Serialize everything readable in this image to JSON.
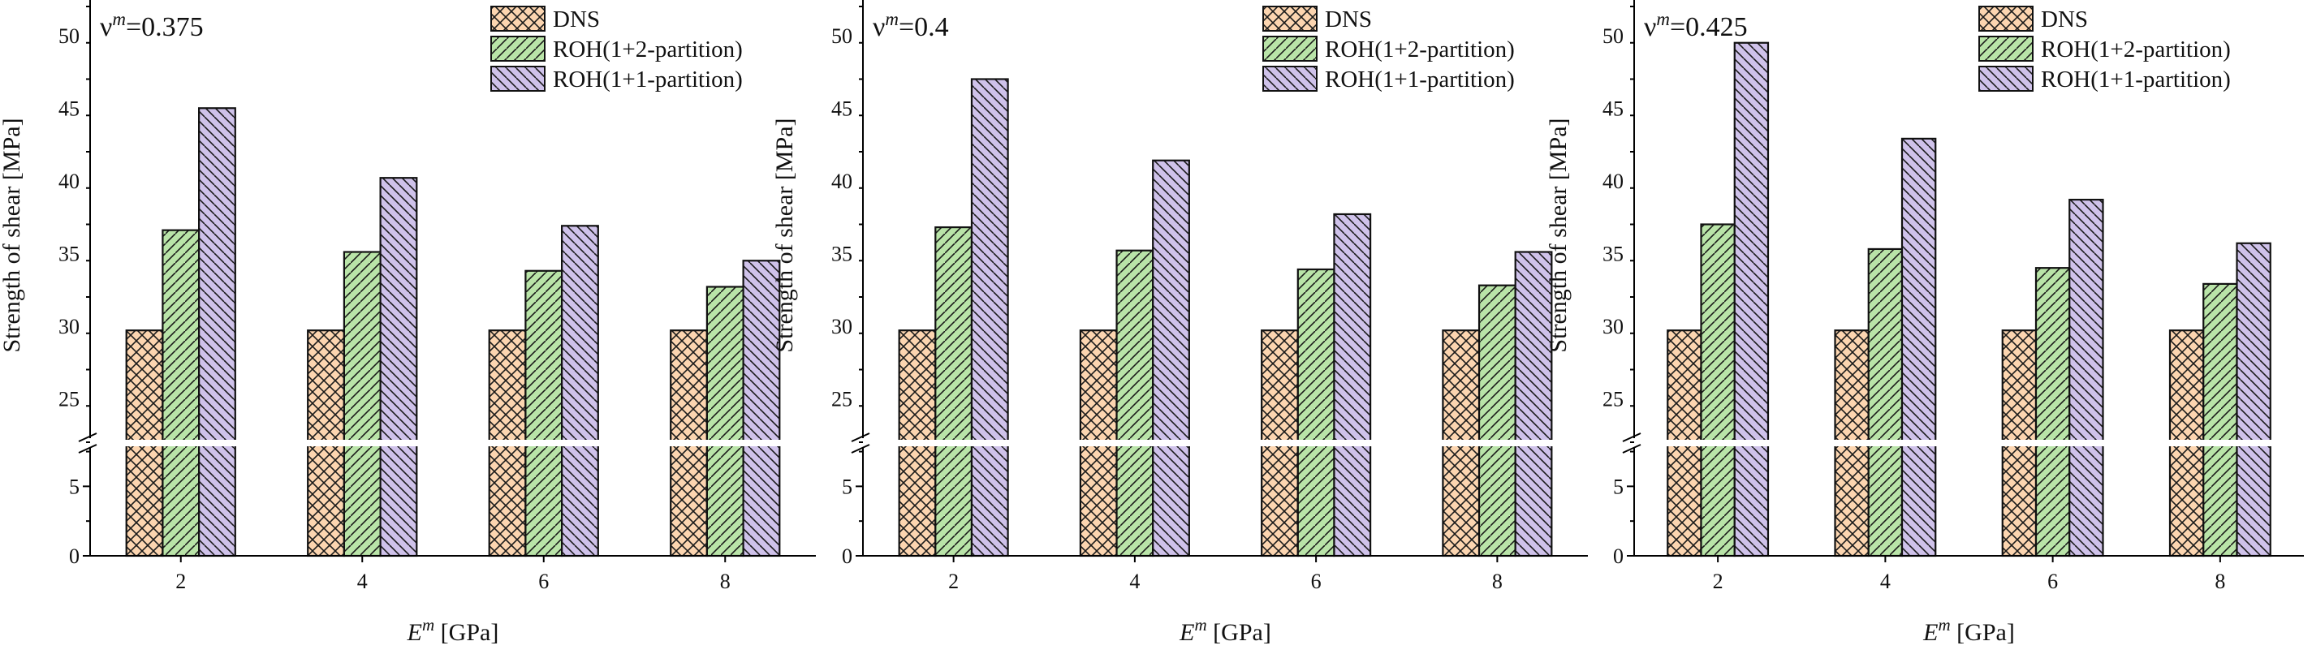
{
  "figure": {
    "legend_entries": [
      "DNS",
      "ROH(1+2-partition)",
      "ROH(1+1-partition)"
    ]
  },
  "colors": {
    "DNS": "#fcd5b0",
    "ROH(1+2-partition)": "#b9e4a8",
    "ROH(1+1-partition)": "#cfc2ea",
    "axis": "#000000",
    "break": "#ffffff"
  },
  "patterns": {
    "DNS": "crosshatch",
    "ROH(1+2-partition)": "forward-diagonal",
    "ROH(1+1-partition)": "back-diagonal"
  },
  "chart_data": [
    {
      "type": "bar",
      "panel_label": {
        "symbol": "ν",
        "superscript": "m",
        "value": "=0.375"
      },
      "xlabel": {
        "symbol": "E",
        "superscript": "m",
        "unit": " [GPa]"
      },
      "ylabel": "Strength of shear [MPa]",
      "categories": [
        "2",
        "4",
        "6",
        "8"
      ],
      "series": [
        {
          "name": "DNS",
          "values": [
            29.7,
            29.7,
            29.7,
            29.7
          ]
        },
        {
          "name": "ROH(1+2-partition)",
          "values": [
            36.6,
            35.1,
            33.8,
            32.7
          ]
        },
        {
          "name": "ROH(1+1-partition)",
          "values": [
            45.0,
            40.2,
            36.9,
            34.5
          ]
        }
      ],
      "axis_break": {
        "lower_range": [
          0,
          8
        ],
        "upper_range": [
          22,
          52
        ]
      },
      "yticks_lower": [
        "0",
        "5"
      ],
      "yticks_upper": [
        "25",
        "30",
        "35",
        "40",
        "45",
        "50"
      ],
      "legend_position": "top-right",
      "grid": false
    },
    {
      "type": "bar",
      "panel_label": {
        "symbol": "ν",
        "superscript": "m",
        "value": "=0.4"
      },
      "xlabel": {
        "symbol": "E",
        "superscript": "m",
        "unit": " [GPa]"
      },
      "ylabel": "Strength of shear [MPa]",
      "categories": [
        "2",
        "4",
        "6",
        "8"
      ],
      "series": [
        {
          "name": "DNS",
          "values": [
            29.7,
            29.7,
            29.7,
            29.7
          ]
        },
        {
          "name": "ROH(1+2-partition)",
          "values": [
            36.8,
            35.2,
            33.9,
            32.8
          ]
        },
        {
          "name": "ROH(1+1-partition)",
          "values": [
            47.0,
            41.4,
            37.7,
            35.1
          ]
        }
      ],
      "axis_break": {
        "lower_range": [
          0,
          8
        ],
        "upper_range": [
          22,
          52
        ]
      },
      "yticks_lower": [
        "0",
        "5"
      ],
      "yticks_upper": [
        "25",
        "30",
        "35",
        "40",
        "45",
        "50"
      ],
      "legend_position": "top-right",
      "grid": false
    },
    {
      "type": "bar",
      "panel_label": {
        "symbol": "ν",
        "superscript": "m",
        "value": "=0.425"
      },
      "xlabel": {
        "symbol": "E",
        "superscript": "m",
        "unit": " [GPa]"
      },
      "ylabel": "Strength of shear [MPa]",
      "categories": [
        "2",
        "4",
        "6",
        "8"
      ],
      "series": [
        {
          "name": "DNS",
          "values": [
            29.7,
            29.7,
            29.7,
            29.7
          ]
        },
        {
          "name": "ROH(1+2-partition)",
          "values": [
            37.0,
            35.3,
            34.0,
            32.9
          ]
        },
        {
          "name": "ROH(1+1-partition)",
          "values": [
            49.5,
            42.9,
            38.7,
            35.7
          ]
        }
      ],
      "axis_break": {
        "lower_range": [
          0,
          8
        ],
        "upper_range": [
          22,
          52
        ]
      },
      "yticks_lower": [
        "0",
        "5"
      ],
      "yticks_upper": [
        "25",
        "30",
        "35",
        "40",
        "45",
        "50"
      ],
      "legend_position": "top-right",
      "grid": false
    }
  ]
}
